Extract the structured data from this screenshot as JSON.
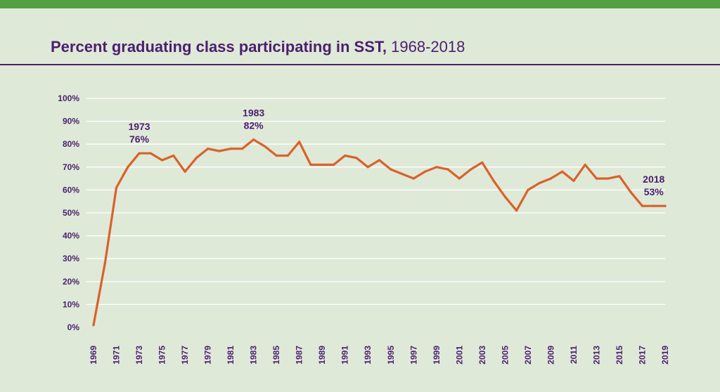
{
  "chart_data": {
    "type": "line",
    "title": "Percent graduating class participating in SST,",
    "title_years": "1968-2018",
    "xlabel": "",
    "ylabel": "",
    "ylim": [
      0,
      100
    ],
    "xlim": [
      1969,
      2019
    ],
    "grid": true,
    "y_ticks": [
      "0%",
      "10%",
      "20%",
      "30%",
      "40%",
      "50%",
      "60%",
      "70%",
      "80%",
      "90%",
      "100%"
    ],
    "x_ticks": [
      "1969",
      "1971",
      "1973",
      "1975",
      "1977",
      "1979",
      "1981",
      "1983",
      "1985",
      "1987",
      "1989",
      "1991",
      "1993",
      "1995",
      "1997",
      "1999",
      "2001",
      "2003",
      "2005",
      "2007",
      "2009",
      "2011",
      "2013",
      "2015",
      "2017",
      "2019"
    ],
    "series": [
      {
        "color": "#d9622b",
        "x": [
          1969,
          1970,
          1971,
          1972,
          1973,
          1974,
          1975,
          1976,
          1977,
          1978,
          1979,
          1980,
          1981,
          1982,
          1983,
          1984,
          1985,
          1986,
          1987,
          1988,
          1989,
          1990,
          1991,
          1992,
          1993,
          1994,
          1995,
          1996,
          1997,
          1998,
          1999,
          2000,
          2001,
          2002,
          2003,
          2004,
          2005,
          2006,
          2007,
          2008,
          2009,
          2010,
          2011,
          2012,
          2013,
          2014,
          2015,
          2016,
          2017,
          2018,
          2019
        ],
        "values": [
          1,
          28,
          61,
          70,
          76,
          76,
          73,
          75,
          68,
          74,
          78,
          77,
          78,
          78,
          82,
          79,
          75,
          75,
          81,
          71,
          71,
          71,
          75,
          74,
          70,
          73,
          69,
          67,
          65,
          68,
          70,
          69,
          65,
          69,
          72,
          64,
          57,
          51,
          60,
          63,
          65,
          68,
          64,
          71,
          65,
          65,
          66,
          59,
          53,
          53,
          53
        ]
      }
    ],
    "annotations": [
      {
        "year": "1973",
        "value": "76%",
        "x": 1973,
        "y": 76
      },
      {
        "year": "1983",
        "value": "82%",
        "x": 1983,
        "y": 82
      },
      {
        "year": "2018",
        "value": "53%",
        "x": 2018,
        "y": 53
      }
    ]
  }
}
